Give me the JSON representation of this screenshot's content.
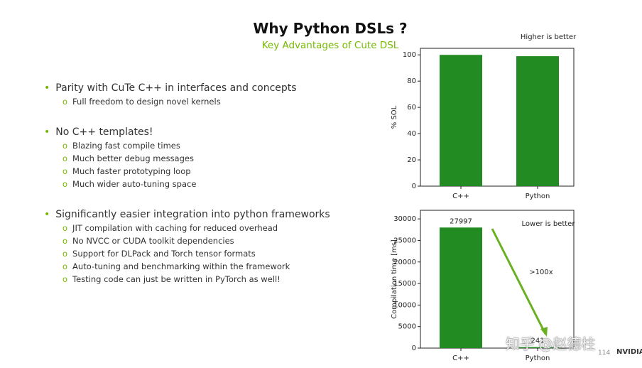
{
  "title": "Why Python DSLs ?",
  "subtitle": "Key Advantages of Cute DSL",
  "bullets": [
    {
      "text": "Parity with CuTe C++ in interfaces and concepts",
      "items": [
        "Full freedom to design novel kernels"
      ]
    },
    {
      "text": "No C++ templates!",
      "items": [
        "Blazing fast compile times",
        "Much better debug messages",
        "Much faster prototyping loop",
        "Much wider auto-tuning space"
      ]
    },
    {
      "text": "Significantly easier integration into python frameworks",
      "items": [
        "JIT compilation with caching for reduced overhead",
        "No NVCC or CUDA toolkit dependencies",
        "Support for DLPack and Torch tensor formats",
        "Auto-tuning and benchmarking within the framework",
        "Testing code can just be written in PyTorch as well!"
      ]
    }
  ],
  "page_number": "114",
  "watermark": "知乎 @赵德柱",
  "logo": "NVIDIA",
  "chart_data": [
    {
      "type": "bar",
      "ylabel": "% SOL",
      "categories": [
        "C++",
        "Python"
      ],
      "values": [
        100,
        99
      ],
      "color": "#228b22",
      "ylim": [
        0,
        105
      ],
      "yticks": [
        0,
        20,
        40,
        60,
        80,
        100
      ],
      "annotations": [
        "Higher is better"
      ]
    },
    {
      "type": "bar",
      "ylabel": "Compilation time [ms]",
      "categories": [
        "C++",
        "Python"
      ],
      "values": [
        27997,
        241
      ],
      "color": "#228b22",
      "ylim": [
        0,
        32000
      ],
      "yticks": [
        0,
        5000,
        10000,
        15000,
        20000,
        25000,
        30000
      ],
      "data_labels": true,
      "annotations": [
        "Lower is better",
        ">100x"
      ]
    }
  ]
}
